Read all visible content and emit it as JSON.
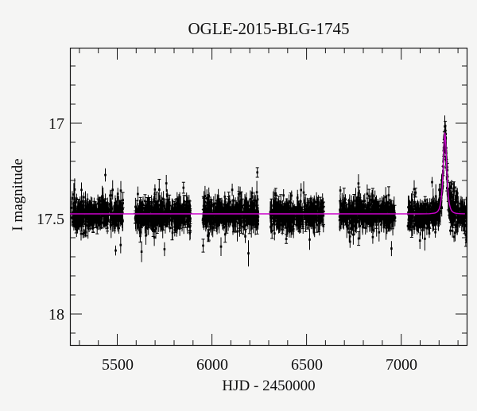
{
  "colors": {
    "background": "#f5f5f4",
    "points": "#000000",
    "model_line": "#cc00cc",
    "axis": "#1a1a1a",
    "text": "#111111"
  },
  "chart_data": {
    "type": "scatter",
    "title": "OGLE-2015-BLG-1745",
    "xlabel": "HJD - 2450000",
    "ylabel": "I magnitude",
    "x_axis": {
      "lim": [
        5250,
        7350
      ],
      "major_ticks": [
        5500,
        6000,
        6500,
        7000
      ],
      "minor_step": 100,
      "tick_labels": [
        "5500",
        "6000",
        "6500",
        "7000"
      ]
    },
    "y_axis": {
      "lim_top_mag": 16.604,
      "lim_bottom_mag": 18.167,
      "inverted": true,
      "major_ticks": [
        17,
        17.5,
        18
      ],
      "minor_step": 0.1,
      "tick_labels": [
        "17",
        "17.5",
        "18"
      ]
    },
    "baseline_mag": 17.475,
    "model": {
      "type": "paczynski",
      "t0": 7231,
      "tE": 12,
      "u0": 0.85,
      "peak_mag": 17.055,
      "baseline_mag": 17.475
    },
    "seasons": [
      {
        "t_start": 5258,
        "t_end": 5531,
        "n": 400
      },
      {
        "t_start": 5594,
        "t_end": 5888,
        "n": 440
      },
      {
        "t_start": 5951,
        "t_end": 6245,
        "n": 440
      },
      {
        "t_start": 6308,
        "t_end": 6590,
        "n": 420
      },
      {
        "t_start": 6674,
        "t_end": 6968,
        "n": 420
      },
      {
        "t_start": 7035,
        "t_end": 7348,
        "n": 460
      }
    ],
    "event_sampling": {
      "rise": {
        "t_range": [
          7207,
          7221
        ],
        "n": 12
      },
      "peak": {
        "t_range": [
          7221,
          7241
        ],
        "n": 34
      },
      "post_peak_cluster": {
        "t_range": [
          7248,
          7298
        ],
        "n": 24,
        "mag_offset_range": [
          0.04,
          0.14
        ]
      }
    },
    "noise": {
      "scatter_sigma": 0.032,
      "outlier_fraction": 0.1,
      "outlier_scale": 2.3,
      "faint_skew_fraction": 0.08,
      "faint_skew_max": 0.06,
      "errorbar_base": 0.022,
      "errorbar_scale": 0.02,
      "cap_fraction": 0.18
    },
    "seed": 20151745
  }
}
